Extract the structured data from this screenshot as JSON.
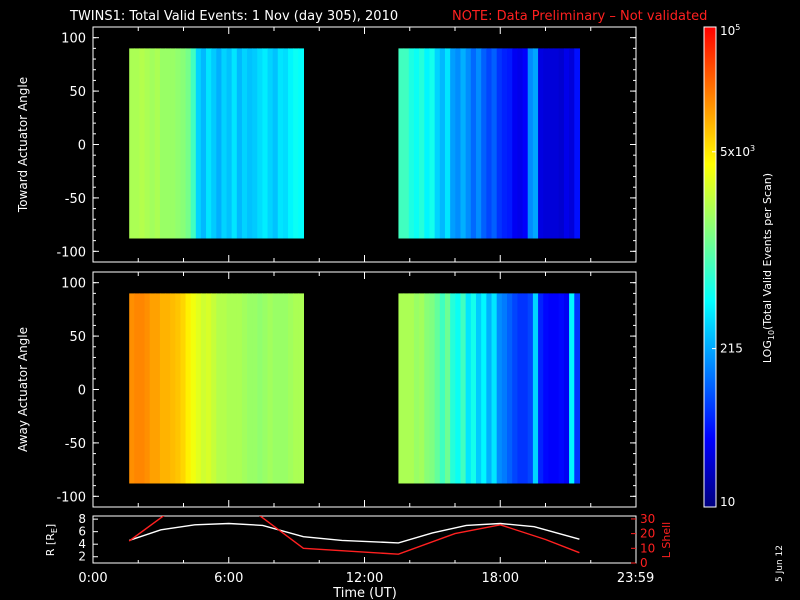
{
  "header": {
    "title": "TWINS1: Total Valid Events:  1 Nov (day 305), 2010",
    "note": "NOTE: Data Preliminary – Not validated",
    "title_color": "#ffffff",
    "note_color": "#ff2020"
  },
  "footer": {
    "date_stamp": "5 Jun 12"
  },
  "chart_data": [
    {
      "type": "heatmap",
      "panel": "toward",
      "ylabel": "Toward Actuator Angle",
      "yticks": [
        100,
        50,
        0,
        -50,
        -100
      ],
      "ylim": [
        -110,
        110
      ],
      "xlim": [
        0,
        24
      ],
      "data_extent": {
        "angle": [
          -88,
          90
        ]
      },
      "segments": [
        {
          "start_hour": 1.6,
          "end_hour": 9.3,
          "level_profile": [
            0.62,
            0.62,
            0.63,
            0.62,
            0.61,
            0.62,
            0.6,
            0.6,
            0.6,
            0.59,
            0.58,
            0.56,
            0.5,
            0.38,
            0.35,
            0.4,
            0.37,
            0.34,
            0.38,
            0.36,
            0.4,
            0.35,
            0.38,
            0.36,
            0.37,
            0.39,
            0.41,
            0.38,
            0.36,
            0.4,
            0.39,
            0.42,
            0.44,
            0.43
          ]
        },
        {
          "start_hour": 13.5,
          "end_hour": 21.5,
          "level_profile": [
            0.5,
            0.5,
            0.46,
            0.44,
            0.47,
            0.42,
            0.45,
            0.38,
            0.35,
            0.4,
            0.32,
            0.3,
            0.34,
            0.3,
            0.26,
            0.3,
            0.25,
            0.22,
            0.25,
            0.2,
            0.18,
            0.17,
            0.13,
            0.12,
            0.14,
            0.3,
            0.33,
            0.11,
            0.1,
            0.1,
            0.1,
            0.09,
            0.12,
            0.1,
            0.16
          ]
        }
      ]
    },
    {
      "type": "heatmap",
      "panel": "away",
      "ylabel": "Away Actuator Angle",
      "yticks": [
        100,
        50,
        0,
        -50,
        -100
      ],
      "ylim": [
        -110,
        110
      ],
      "xlim": [
        0,
        24
      ],
      "data_extent": {
        "angle": [
          -88,
          90
        ]
      },
      "segments": [
        {
          "start_hour": 1.6,
          "end_hour": 9.3,
          "level_profile": [
            0.84,
            0.85,
            0.85,
            0.84,
            0.82,
            0.82,
            0.8,
            0.8,
            0.79,
            0.78,
            0.76,
            0.73,
            0.7,
            0.68,
            0.66,
            0.67,
            0.65,
            0.63,
            0.63,
            0.62,
            0.62,
            0.62,
            0.61,
            0.6,
            0.6,
            0.59,
            0.6,
            0.61,
            0.6,
            0.6,
            0.6,
            0.61,
            0.62,
            0.62
          ]
        },
        {
          "start_hour": 13.5,
          "end_hour": 21.5,
          "level_profile": [
            0.62,
            0.62,
            0.62,
            0.6,
            0.61,
            0.58,
            0.57,
            0.54,
            0.5,
            0.55,
            0.47,
            0.44,
            0.5,
            0.4,
            0.45,
            0.37,
            0.42,
            0.34,
            0.4,
            0.3,
            0.28,
            0.25,
            0.22,
            0.2,
            0.2,
            0.22,
            0.38,
            0.18,
            0.15,
            0.14,
            0.14,
            0.15,
            0.13,
            0.42,
            0.2
          ]
        }
      ]
    },
    {
      "type": "line",
      "panel": "orbit",
      "ylabel": "R [R",
      "ylabel_sub": "E",
      "ylabel_tail": "]",
      "y2label": "L Shell",
      "xlabel": "Time (UT)",
      "xlim": [
        0,
        24
      ],
      "ylim": [
        1,
        8.5
      ],
      "y2lim": [
        0,
        32
      ],
      "yticks": [
        2,
        4,
        6,
        8
      ],
      "y2ticks": [
        0,
        10,
        20,
        30
      ],
      "xtick_labels": [
        {
          "hour": 0,
          "label": "0:00"
        },
        {
          "hour": 6,
          "label": "6:00"
        },
        {
          "hour": 12,
          "label": "12:00"
        },
        {
          "hour": 18,
          "label": "18:00"
        },
        {
          "hour": 23.98,
          "label": "23:59"
        }
      ],
      "series": [
        {
          "axis": "left",
          "color": "#ffffff",
          "x": [
            1.6,
            3.0,
            4.5,
            6.0,
            7.5,
            9.3,
            11.0,
            13.5,
            15.0,
            16.5,
            18.0,
            19.5,
            21.5
          ],
          "y": [
            4.6,
            6.3,
            7.1,
            7.3,
            7.0,
            5.2,
            4.6,
            4.2,
            5.8,
            7.0,
            7.3,
            6.8,
            4.8
          ]
        },
        {
          "axis": "right",
          "color": "#ff2020",
          "x": [
            1.6,
            3.2,
            7.3,
            9.3,
            13.5,
            16.0,
            18.0,
            20.0,
            21.5
          ],
          "y": [
            15,
            33,
            33,
            10,
            6,
            20,
            26,
            16,
            7
          ]
        }
      ]
    },
    {
      "type": "colorbar",
      "label": "LOG",
      "label_sub": "10",
      "label_tail": "(Total Valid Events per Scan)",
      "ticks": [
        {
          "value": 100000,
          "base": "10",
          "exp": "5",
          "frac": 1.0
        },
        {
          "value": 5000,
          "base": "5x10",
          "exp": "3",
          "frac": 0.74
        },
        {
          "value": 215,
          "base": "215",
          "exp": "",
          "frac": 0.33
        },
        {
          "value": 10,
          "base": "10",
          "exp": "",
          "frac": 0.0
        }
      ],
      "colors": [
        "#00007f",
        "#0000ff",
        "#0080ff",
        "#00ffff",
        "#80ff80",
        "#ffff00",
        "#ff8000",
        "#ff0000"
      ]
    }
  ]
}
